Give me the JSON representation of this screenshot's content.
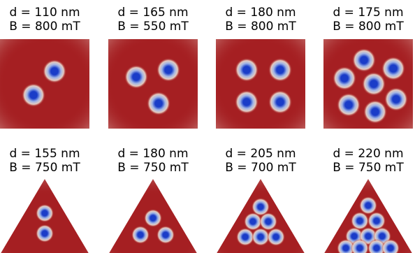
{
  "colors": {
    "background": "#a51f22",
    "core_rim": "#e8d4c8",
    "core_mid": "#9fb4e6",
    "core_center": "#1a3cc8"
  },
  "rows": [
    {
      "shape": "square",
      "panels": [
        {
          "d": "d = 110 nm",
          "b": "B = 800 mT",
          "skyrmion_count": 2
        },
        {
          "d": "d = 165 nm",
          "b": "B = 550 mT",
          "skyrmion_count": 3
        },
        {
          "d": "d = 180 nm",
          "b": "B = 800 mT",
          "skyrmion_count": 4
        },
        {
          "d": "d = 175 nm",
          "b": "B = 800 mT",
          "skyrmion_count": 7
        }
      ]
    },
    {
      "shape": "triangle",
      "panels": [
        {
          "d": "d = 155 nm",
          "b": "B = 750 mT",
          "skyrmion_count": 2
        },
        {
          "d": "d = 180 nm",
          "b": "B = 750 mT",
          "skyrmion_count": 3
        },
        {
          "d": "d = 205 nm",
          "b": "B = 700 mT",
          "skyrmion_count": 6
        },
        {
          "d": "d = 220 nm",
          "b": "B = 750 mT",
          "skyrmion_count": 10
        }
      ]
    }
  ]
}
